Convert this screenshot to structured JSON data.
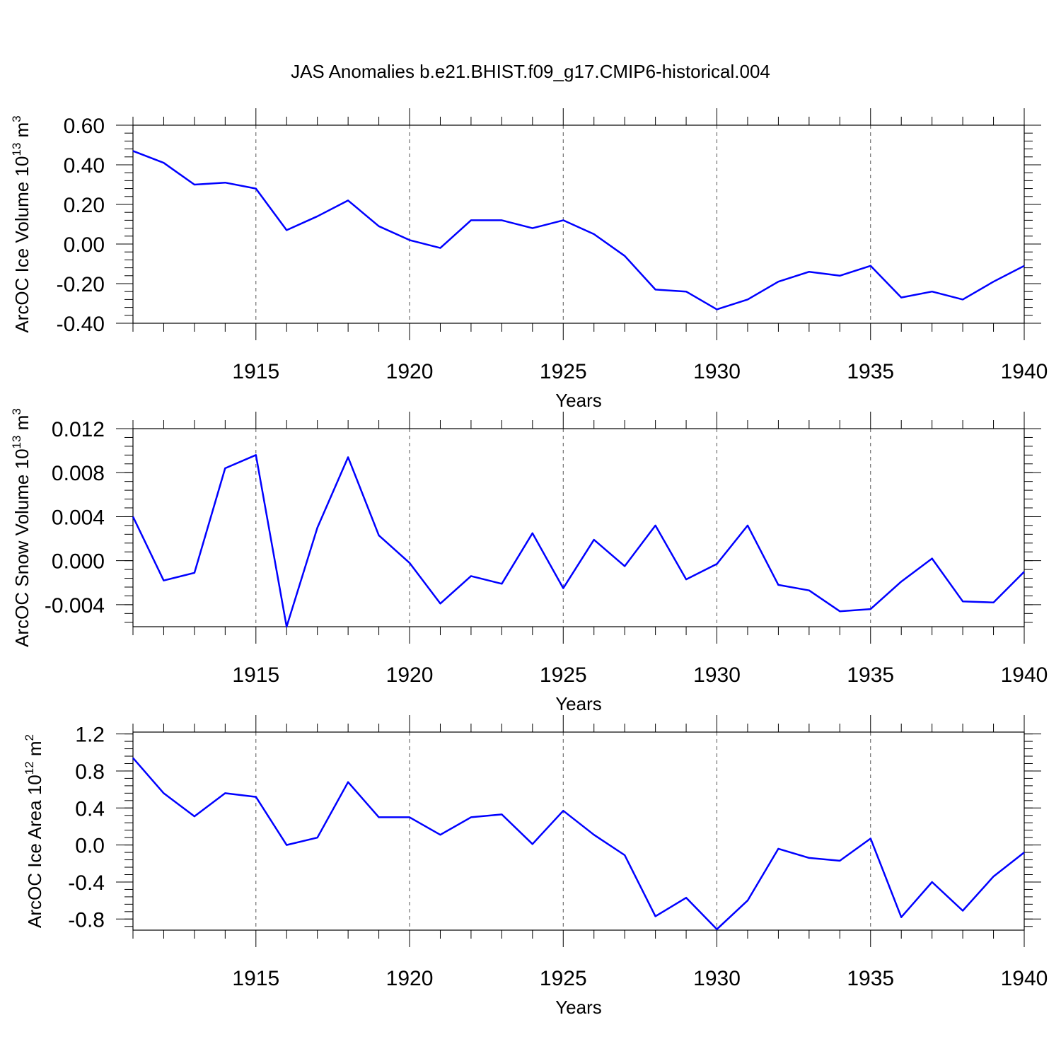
{
  "title": "JAS Anomalies b.e21.BHIST.f09_g17.CMIP6-historical.004",
  "chart_data": [
    {
      "type": "line",
      "ylabel": {
        "base": "ArcOC Ice Volume 10",
        "exp": "13",
        "unit": " m",
        "unit_exp": "3"
      },
      "xlabel": "Years",
      "xlim": [
        1911,
        1940
      ],
      "ylim": [
        -0.4,
        0.6
      ],
      "xticks": [
        1915,
        1920,
        1925,
        1930,
        1935,
        1940
      ],
      "yticks": [
        -0.4,
        -0.2,
        0.0,
        0.2,
        0.4,
        0.6
      ],
      "ytick_labels": [
        "-0.40",
        "-0.20",
        "0.00",
        "0.20",
        "0.40",
        "0.60"
      ],
      "color": "#0000ff",
      "grid": "vertical dashed at labeled years",
      "x": [
        1911,
        1912,
        1913,
        1914,
        1915,
        1916,
        1917,
        1918,
        1919,
        1920,
        1921,
        1922,
        1923,
        1924,
        1925,
        1926,
        1927,
        1928,
        1929,
        1930,
        1931,
        1932,
        1933,
        1934,
        1935,
        1936,
        1937,
        1938,
        1939,
        1940
      ],
      "values": [
        0.47,
        0.41,
        0.3,
        0.31,
        0.28,
        0.07,
        0.14,
        0.22,
        0.09,
        0.02,
        -0.02,
        0.12,
        0.12,
        0.08,
        0.12,
        0.05,
        -0.06,
        -0.23,
        -0.24,
        -0.33,
        -0.28,
        -0.19,
        -0.14,
        -0.16,
        -0.11,
        -0.27,
        -0.24,
        -0.28,
        -0.19,
        -0.11
      ]
    },
    {
      "type": "line",
      "ylabel": {
        "base": "ArcOC Snow Volume 10",
        "exp": "13",
        "unit": " m",
        "unit_exp": "3"
      },
      "xlabel": "Years",
      "xlim": [
        1911,
        1940
      ],
      "ylim": [
        -0.006,
        0.012
      ],
      "xticks": [
        1915,
        1920,
        1925,
        1930,
        1935,
        1940
      ],
      "yticks": [
        -0.004,
        0.0,
        0.004,
        0.008,
        0.012
      ],
      "ytick_labels": [
        "-0.004",
        "0.000",
        "0.004",
        "0.008",
        "0.012"
      ],
      "color": "#0000ff",
      "grid": "vertical dashed at labeled years",
      "x": [
        1911,
        1912,
        1913,
        1914,
        1915,
        1916,
        1917,
        1918,
        1919,
        1920,
        1921,
        1922,
        1923,
        1924,
        1925,
        1926,
        1927,
        1928,
        1929,
        1930,
        1931,
        1932,
        1933,
        1934,
        1935,
        1936,
        1937,
        1938,
        1939,
        1940
      ],
      "values": [
        0.004,
        -0.0018,
        -0.0011,
        0.0084,
        0.0096,
        -0.006,
        0.003,
        0.0094,
        0.0023,
        -0.0002,
        -0.0039,
        -0.0014,
        -0.0021,
        0.0025,
        -0.0025,
        0.0019,
        -0.0005,
        0.0032,
        -0.0017,
        -0.0003,
        0.0032,
        -0.0022,
        -0.0027,
        -0.0046,
        -0.0044,
        -0.0019,
        0.0002,
        -0.0037,
        -0.0038,
        -0.001
      ]
    },
    {
      "type": "line",
      "ylabel": {
        "base": "ArcOC Ice Area 10",
        "exp": "12",
        "unit": " m",
        "unit_exp": "2"
      },
      "xlabel": "Years",
      "xlim": [
        1911,
        1940
      ],
      "ylim": [
        -0.92,
        1.22
      ],
      "xticks": [
        1915,
        1920,
        1925,
        1930,
        1935,
        1940
      ],
      "yticks": [
        -0.8,
        -0.4,
        0.0,
        0.4,
        0.8,
        1.2
      ],
      "ytick_labels": [
        "-0.8",
        "-0.4",
        "0.0",
        "0.4",
        "0.8",
        "1.2"
      ],
      "color": "#0000ff",
      "grid": "vertical dashed at labeled years",
      "x": [
        1911,
        1912,
        1913,
        1914,
        1915,
        1916,
        1917,
        1918,
        1919,
        1920,
        1921,
        1922,
        1923,
        1924,
        1925,
        1926,
        1927,
        1928,
        1929,
        1930,
        1931,
        1932,
        1933,
        1934,
        1935,
        1936,
        1937,
        1938,
        1939,
        1940
      ],
      "values": [
        0.94,
        0.56,
        0.31,
        0.56,
        0.52,
        0.0,
        0.08,
        0.68,
        0.3,
        0.3,
        0.11,
        0.3,
        0.33,
        0.01,
        0.37,
        0.11,
        -0.11,
        -0.77,
        -0.57,
        -0.91,
        -0.6,
        -0.04,
        -0.14,
        -0.17,
        0.07,
        -0.78,
        -0.4,
        -0.71,
        -0.34,
        -0.08
      ]
    }
  ]
}
